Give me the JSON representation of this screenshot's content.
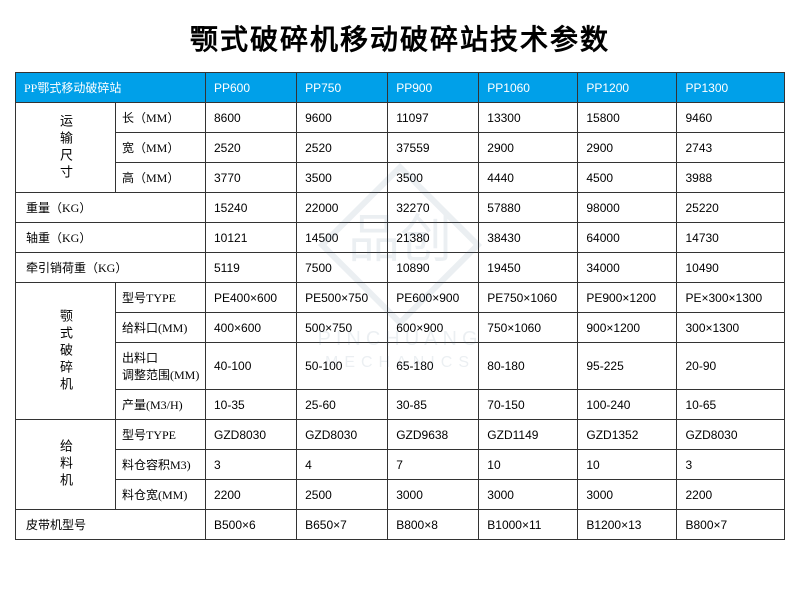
{
  "title": "颚式破碎机移动破碎站技术参数",
  "header": {
    "corner": "PP鄂式移动破碎站",
    "cols": [
      "PP600",
      "PP750",
      "PP900",
      "PP1060",
      "PP1200",
      "PP1300"
    ]
  },
  "groups": [
    {
      "label": "运输尺寸",
      "rows": [
        {
          "label": "长（MM）",
          "vals": [
            "8600",
            "9600",
            "11097",
            "13300",
            "15800",
            "9460"
          ]
        },
        {
          "label": "宽（MM）",
          "vals": [
            "2520",
            "2520",
            "37559",
            "2900",
            "2900",
            "2743"
          ]
        },
        {
          "label": "高（MM）",
          "vals": [
            "3770",
            "3500",
            "3500",
            "4440",
            "4500",
            "3988"
          ]
        }
      ]
    }
  ],
  "flat_rows": [
    {
      "label": "重量（KG）",
      "vals": [
        "15240",
        "22000",
        "32270",
        "57880",
        "98000",
        "25220"
      ]
    },
    {
      "label": "轴重（KG）",
      "vals": [
        "10121",
        "14500",
        "21380",
        "38430",
        "64000",
        "14730"
      ]
    },
    {
      "label": "牵引销荷重（KG）",
      "vals": [
        "5119",
        "7500",
        "10890",
        "19450",
        "34000",
        "10490"
      ]
    }
  ],
  "groups2": [
    {
      "label": "颚式破碎机",
      "rows": [
        {
          "label": "型号TYPE",
          "vals": [
            "PE400×600",
            "PE500×750",
            "PE600×900",
            "PE750×1060",
            "PE900×1200",
            "PE×300×1300"
          ]
        },
        {
          "label": "给料口(MM)",
          "vals": [
            "400×600",
            "500×750",
            "600×900",
            "750×1060",
            "900×1200",
            "300×1300"
          ]
        },
        {
          "label": "出料口\n调整范围(MM)",
          "vals": [
            "40-100",
            "50-100",
            "65-180",
            "80-180",
            "95-225",
            "20-90"
          ]
        },
        {
          "label": "产量(M3/H)",
          "vals": [
            "10-35",
            "25-60",
            "30-85",
            "70-150",
            "100-240",
            "10-65"
          ]
        }
      ]
    },
    {
      "label": "给料机",
      "rows": [
        {
          "label": "型号TYPE",
          "vals": [
            "GZD8030",
            "GZD8030",
            "GZD9638",
            "GZD1149",
            "GZD1352",
            "GZD8030"
          ]
        },
        {
          "label": "料仓容积M3)",
          "vals": [
            "3",
            "4",
            "7",
            "10",
            "10",
            "3"
          ]
        },
        {
          "label": "料仓宽(MM)",
          "vals": [
            "2200",
            "2500",
            "3000",
            "3000",
            "3000",
            "2200"
          ]
        }
      ]
    }
  ],
  "last_row": {
    "label": "皮带机型号",
    "vals": [
      "B500×6",
      "B650×7",
      "B800×8",
      "B1000×11",
      "B1200×13",
      "B800×7"
    ]
  },
  "colors": {
    "header_bg": "#00a0e9",
    "header_fg": "#ffffff",
    "border": "#333333",
    "bg": "#ffffff",
    "watermark": "#4a6a8a"
  },
  "watermark": {
    "brand_cn": "品创",
    "brand_en_top": "PINCHUANG",
    "brand_en_bottom": "MECHANICS"
  }
}
